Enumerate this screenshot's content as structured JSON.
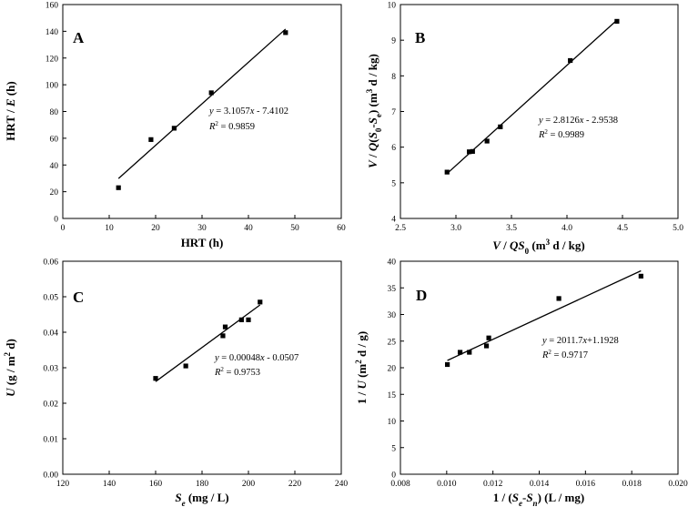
{
  "chart_data": [
    {
      "type": "scatter",
      "panel_label": "A",
      "xlabel": "HRT (h)",
      "ylabel": "HRT / E (h)",
      "xlim": [
        0,
        60
      ],
      "ylim": [
        0,
        160
      ],
      "xticks": [
        "0",
        "10",
        "20",
        "30",
        "40",
        "50",
        "60"
      ],
      "yticks": [
        "0",
        "20",
        "40",
        "60",
        "80",
        "100",
        "120",
        "140",
        "160"
      ],
      "points": [
        [
          12,
          23
        ],
        [
          19,
          59
        ],
        [
          24,
          67.5
        ],
        [
          32,
          94
        ],
        [
          48,
          139
        ]
      ],
      "fit": {
        "slope": 3.1057,
        "intercept": -7.4102,
        "x_range": [
          12,
          48
        ]
      },
      "equation": "y = 3.1057x - 7.4102",
      "r2": "R2 = 0.9859"
    },
    {
      "type": "scatter",
      "panel_label": "B",
      "xlabel": "V / QS0 (m3 d / kg)",
      "ylabel": "V / Q(S0-Se) (m3 d / kg)",
      "xlim": [
        2.5,
        5.0
      ],
      "ylim": [
        4,
        10
      ],
      "xticks": [
        "2.5",
        "3.0",
        "3.5",
        "4.0",
        "4.5",
        "5.0"
      ],
      "yticks": [
        "4",
        "5",
        "6",
        "7",
        "8",
        "9",
        "10"
      ],
      "points": [
        [
          2.92,
          5.3
        ],
        [
          3.12,
          5.87
        ],
        [
          3.15,
          5.88
        ],
        [
          3.28,
          6.17
        ],
        [
          3.4,
          6.57
        ],
        [
          4.03,
          8.43
        ],
        [
          4.45,
          9.53
        ]
      ],
      "fit": {
        "slope": 2.8126,
        "intercept": -2.9538,
        "x_range": [
          2.92,
          4.45
        ]
      },
      "equation": "y = 2.8126x - 2.9538",
      "r2": "R2 = 0.9989"
    },
    {
      "type": "scatter",
      "panel_label": "C",
      "xlabel": "Se (mg / L)",
      "ylabel": "U (g / m2 d)",
      "xlim": [
        120,
        240
      ],
      "ylim": [
        0,
        0.06
      ],
      "xticks": [
        "120",
        "140",
        "160",
        "180",
        "200",
        "220",
        "240"
      ],
      "yticks": [
        "0.00",
        "0.01",
        "0.02",
        "0.03",
        "0.04",
        "0.05",
        "0.06"
      ],
      "points": [
        [
          160,
          0.027
        ],
        [
          173,
          0.0305
        ],
        [
          189,
          0.039
        ],
        [
          190,
          0.0415
        ],
        [
          197,
          0.0435
        ],
        [
          200,
          0.0435
        ],
        [
          205,
          0.0485
        ]
      ],
      "fit": {
        "slope": 0.00048,
        "intercept": -0.0507,
        "x_range": [
          160,
          205
        ]
      },
      "equation": "y = 0.00048x - 0.0507",
      "r2": "R2 = 0.9753"
    },
    {
      "type": "scatter",
      "panel_label": "D",
      "xlabel": "1 / (Se-Sn) (L / mg)",
      "ylabel": "1 / U (m2 d / g)",
      "xlim": [
        0.008,
        0.02
      ],
      "ylim": [
        0,
        40
      ],
      "xticks": [
        "0.008",
        "0.010",
        "0.012",
        "0.014",
        "0.016",
        "0.018",
        "0.020"
      ],
      "yticks": [
        "0",
        "5",
        "10",
        "15",
        "20",
        "25",
        "30",
        "35",
        "40"
      ],
      "points": [
        [
          0.01003,
          20.6
        ],
        [
          0.01058,
          22.9
        ],
        [
          0.01098,
          22.9
        ],
        [
          0.01172,
          24.1
        ],
        [
          0.01182,
          25.6
        ],
        [
          0.01485,
          33.0
        ],
        [
          0.0184,
          37.2
        ]
      ],
      "fit": {
        "slope": 2011.7,
        "intercept": 1.1928,
        "x_range": [
          0.01003,
          0.0184
        ]
      },
      "equation": "y = 2011.7x+1.1928",
      "r2": "R2 = 0.9717"
    }
  ]
}
